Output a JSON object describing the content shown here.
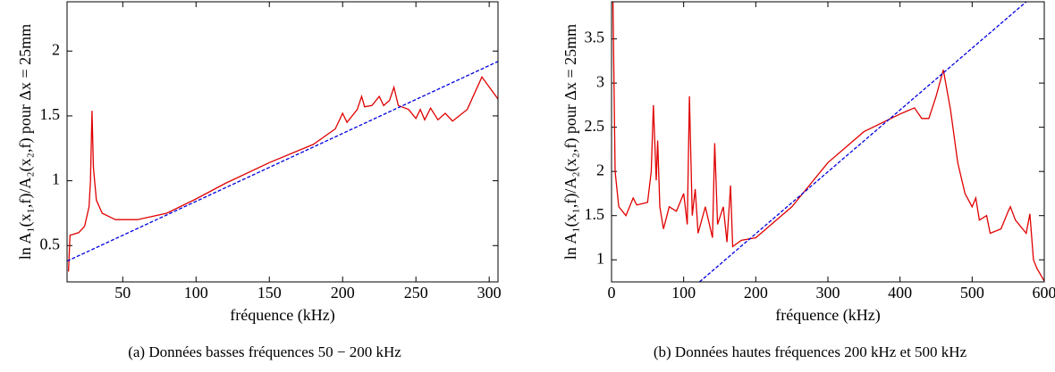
{
  "chart_data": [
    {
      "type": "line",
      "xlabel": "fréquence (kHz)",
      "ylabel": "ln A₁(x₁,f)/A₂(x₂,f)   pour Δx = 25mm",
      "caption": "(a) Données basses fréquences 50 − 200 kHz",
      "xlim": [
        12,
        306
      ],
      "xticks": [
        50,
        100,
        150,
        200,
        250,
        300
      ],
      "ylim": [
        0.22,
        2.38
      ],
      "yticks": [
        0.5,
        1,
        1.5,
        2
      ],
      "series": [
        {
          "color": "#e00000",
          "linestyle": "solid",
          "x": [
            13,
            14,
            20,
            24,
            27,
            28,
            29,
            30,
            32,
            36,
            45,
            60,
            80,
            100,
            120,
            150,
            180,
            195,
            200,
            203,
            210,
            213,
            215,
            220,
            225,
            228,
            232,
            235,
            238,
            245,
            250,
            253,
            256,
            260,
            265,
            270,
            275,
            285,
            295,
            306
          ],
          "values": [
            0.3,
            0.58,
            0.6,
            0.65,
            0.8,
            1.0,
            1.54,
            1.1,
            0.85,
            0.75,
            0.7,
            0.7,
            0.75,
            0.86,
            0.98,
            1.14,
            1.28,
            1.4,
            1.52,
            1.45,
            1.55,
            1.65,
            1.57,
            1.58,
            1.65,
            1.58,
            1.62,
            1.72,
            1.58,
            1.55,
            1.48,
            1.55,
            1.47,
            1.56,
            1.47,
            1.52,
            1.46,
            1.55,
            1.8,
            1.63
          ]
        },
        {
          "color": "#0000e0",
          "linestyle": "dashed",
          "x": [
            12,
            306
          ],
          "values": [
            0.38,
            1.92
          ]
        }
      ]
    },
    {
      "type": "line",
      "xlabel": "fréquence (kHz)",
      "ylabel": "ln A₁(x₁,f)/A₂(x₂,f)   pour Δx = 25mm",
      "caption": "(b) Données hautes fréquences 200 kHz et 500 kHz",
      "xlim": [
        0,
        600
      ],
      "xticks": [
        0,
        100,
        200,
        300,
        400,
        500,
        600
      ],
      "ylim": [
        0.75,
        3.92
      ],
      "yticks": [
        1,
        1.5,
        2,
        2.5,
        3,
        3.5
      ],
      "series": [
        {
          "color": "#e00000",
          "linestyle": "solid",
          "x": [
            2,
            5,
            10,
            20,
            30,
            35,
            50,
            55,
            58,
            62,
            64,
            67,
            72,
            80,
            90,
            100,
            105,
            108,
            112,
            116,
            120,
            130,
            140,
            143,
            147,
            155,
            160,
            165,
            168,
            180,
            200,
            250,
            300,
            350,
            400,
            420,
            430,
            440,
            450,
            460,
            470,
            480,
            490,
            500,
            505,
            510,
            520,
            525,
            540,
            550,
            553,
            560,
            575,
            580,
            585,
            590,
            600
          ],
          "values": [
            3.92,
            2.0,
            1.6,
            1.5,
            1.7,
            1.62,
            1.65,
            2.0,
            2.75,
            1.9,
            2.35,
            1.6,
            1.35,
            1.6,
            1.55,
            1.75,
            1.4,
            2.85,
            1.5,
            1.8,
            1.3,
            1.6,
            1.25,
            2.32,
            1.4,
            1.6,
            1.2,
            1.84,
            1.15,
            1.22,
            1.25,
            1.6,
            2.1,
            2.45,
            2.65,
            2.72,
            2.6,
            2.6,
            2.85,
            3.15,
            2.7,
            2.1,
            1.75,
            1.6,
            1.7,
            1.45,
            1.5,
            1.3,
            1.35,
            1.55,
            1.6,
            1.45,
            1.3,
            1.52,
            1.0,
            0.9,
            0.76
          ]
        },
        {
          "color": "#0000e0",
          "linestyle": "dashed",
          "x": [
            122,
            575
          ],
          "values": [
            0.75,
            3.92
          ]
        }
      ]
    }
  ]
}
